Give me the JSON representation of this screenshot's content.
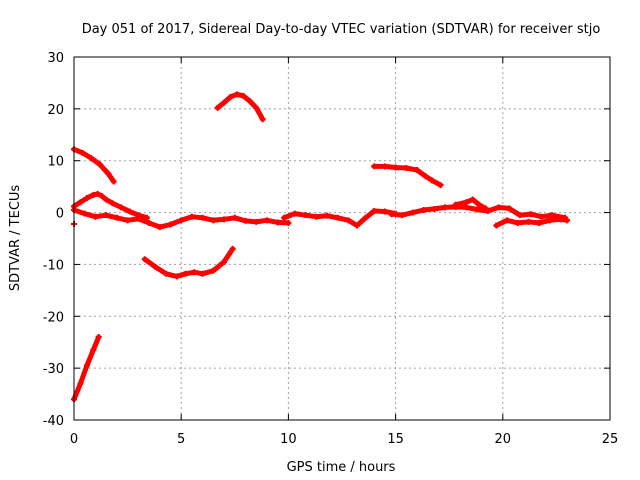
{
  "chart_data": {
    "type": "scatter",
    "title": "Day 051 of 2017, Sidereal Day-to-day VTEC variation (SDTVAR) for receiver stjo",
    "xlabel": "GPS time / hours",
    "ylabel": "SDTVAR / TECUs",
    "xlim": [
      0,
      25
    ],
    "ylim": [
      -40,
      30
    ],
    "xticks": [
      0,
      5,
      10,
      15,
      20,
      25
    ],
    "yticks": [
      -40,
      -30,
      -20,
      -10,
      0,
      10,
      20,
      30
    ],
    "grid": true,
    "legend": "none",
    "point_color": "#ff0000",
    "series": [
      {
        "name": "arc-low-start",
        "x": [
          0.0,
          0.3,
          0.6,
          0.9,
          1.15
        ],
        "y": [
          -36,
          -33,
          -29.5,
          -26.5,
          -24
        ]
      },
      {
        "name": "arc-high-start",
        "x": [
          0.0,
          0.4,
          0.8,
          1.2,
          1.6,
          1.85
        ],
        "y": [
          12.2,
          11.5,
          10.5,
          9.3,
          7.5,
          6
        ]
      },
      {
        "name": "arc-mid-start",
        "x": [
          0.0,
          0.3,
          0.6,
          0.9,
          1.1,
          1.3,
          1.5,
          1.8,
          2.2,
          2.6,
          3.0,
          3.4
        ],
        "y": [
          1.2,
          2.0,
          2.8,
          3.4,
          3.6,
          3.2,
          2.5,
          1.8,
          1.0,
          0.2,
          -0.5,
          -1.0
        ]
      },
      {
        "name": "arc-base-1",
        "x": [
          0.0,
          0.5,
          1.0,
          1.5,
          2.0,
          2.5,
          3.0,
          3.5,
          4.0,
          4.5,
          5.0,
          5.5,
          6.0,
          6.5,
          7.0,
          7.5,
          8.0,
          8.5,
          9.0,
          9.5,
          10.0
        ],
        "y": [
          0.5,
          -0.2,
          -0.8,
          -0.5,
          -1.0,
          -1.5,
          -1.2,
          -2.0,
          -2.8,
          -2.3,
          -1.5,
          -0.8,
          -1.0,
          -1.5,
          -1.3,
          -1.0,
          -1.6,
          -1.8,
          -1.5,
          -1.9,
          -2.0
        ]
      },
      {
        "name": "arc-low-mid",
        "x": [
          3.3,
          3.8,
          4.3,
          4.8,
          5.2,
          5.6,
          6.0,
          6.5,
          7.0,
          7.4
        ],
        "y": [
          -9,
          -10.5,
          -11.8,
          -12.3,
          -11.8,
          -11.5,
          -11.8,
          -11.2,
          -9.5,
          -7
        ]
      },
      {
        "name": "arc-high-mid",
        "x": [
          6.7,
          7.0,
          7.3,
          7.6,
          7.9,
          8.2,
          8.5,
          8.8
        ],
        "y": [
          20.2,
          21.2,
          22.3,
          22.8,
          22.5,
          21.5,
          20.2,
          18.0
        ]
      },
      {
        "name": "arc-base-2",
        "x": [
          9.8,
          10.3,
          10.8,
          11.3,
          11.8,
          12.3,
          12.8,
          13.2,
          13.6,
          14.0,
          14.5,
          15.0
        ],
        "y": [
          -1.0,
          -0.2,
          -0.5,
          -0.8,
          -0.6,
          -1.0,
          -1.5,
          -2.5,
          -1.0,
          0.3,
          0.2,
          -0.2
        ]
      },
      {
        "name": "arc-high-right",
        "x": [
          14.0,
          14.5,
          15.0,
          15.5,
          16.0,
          16.4,
          16.7,
          17.1
        ],
        "y": [
          8.9,
          8.9,
          8.7,
          8.6,
          8.2,
          7.0,
          6.2,
          5.3
        ]
      },
      {
        "name": "arc-base-3",
        "x": [
          14.8,
          15.3,
          15.8,
          16.3,
          16.8,
          17.3,
          17.8,
          18.3,
          18.8,
          19.3,
          19.8,
          20.3,
          20.8,
          21.3,
          21.8,
          22.3,
          22.9
        ],
        "y": [
          -0.3,
          -0.5,
          0.0,
          0.5,
          0.7,
          1.0,
          1.1,
          1.0,
          0.6,
          0.3,
          1.0,
          0.8,
          -0.5,
          -0.3,
          -0.8,
          -0.5,
          -1.0
        ]
      },
      {
        "name": "arc-lower-right",
        "x": [
          19.7,
          20.2,
          20.7,
          21.2,
          21.7,
          22.2,
          22.7,
          23.0
        ],
        "y": [
          -2.5,
          -1.5,
          -2.0,
          -1.8,
          -2.0,
          -1.5,
          -1.3,
          -1.5
        ]
      },
      {
        "name": "arc-peak-right",
        "x": [
          17.8,
          18.3,
          18.6,
          18.9,
          19.2
        ],
        "y": [
          1.5,
          2.0,
          2.5,
          1.5,
          0.8
        ]
      },
      {
        "name": "isolated-point",
        "x": [
          0.0
        ],
        "y": [
          -2.2
        ]
      }
    ]
  }
}
